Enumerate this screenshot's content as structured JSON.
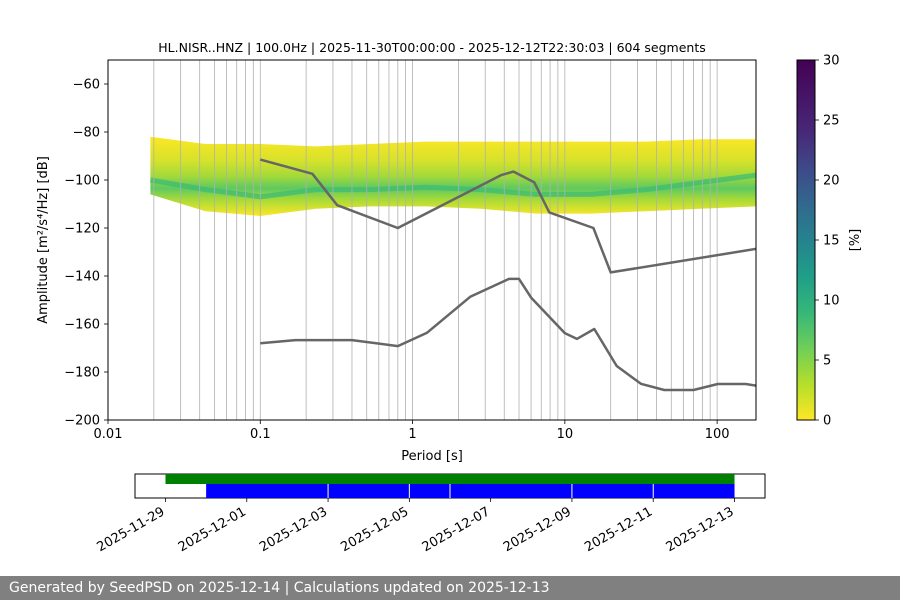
{
  "chart_data": [
    {
      "type": "heatmap",
      "title": "HL.NISR..HNZ | 100.0Hz | 2025-11-30T00:00:00 - 2025-12-12T22:30:03 | 604 segments",
      "xlabel": "Period [s]",
      "ylabel": "Amplitude [m²/s⁴/Hz] [dB]",
      "x_scale": "log",
      "xlim": [
        0.01,
        180
      ],
      "ylim": [
        -200,
        -50
      ],
      "x_ticks": [
        0.01,
        0.1,
        1,
        10,
        100
      ],
      "x_tick_labels": [
        "0.01",
        "0.1",
        "1",
        "10",
        "100"
      ],
      "y_ticks": [
        -200,
        -180,
        -160,
        -140,
        -120,
        -100,
        -80,
        -60
      ],
      "y_tick_labels": [
        "−200",
        "−180",
        "−160",
        "−140",
        "−120",
        "−100",
        "−80",
        "−60"
      ],
      "grid": "x-major-and-minor",
      "colorbar": {
        "label": "[%]",
        "range": [
          0,
          30
        ],
        "ticks": [
          0,
          5,
          10,
          15,
          20,
          25,
          30
        ],
        "colormap": "viridis-reversed"
      },
      "psd_band": {
        "period_start": 0.019,
        "period_end": 180,
        "upper_db": [
          -82,
          -85,
          -85,
          -86,
          -85,
          -84,
          -84,
          -84,
          -84,
          -84,
          -83,
          -83
        ],
        "lower_db": [
          -106,
          -113,
          -115,
          -112,
          -111,
          -111,
          -112,
          -114,
          -114,
          -113,
          -112,
          -111
        ],
        "center_db": [
          -100,
          -104,
          -107,
          -104,
          -104,
          -103,
          -104,
          -106,
          -106,
          -104,
          -101,
          -98
        ]
      },
      "series": [
        {
          "color": "#666666",
          "x": [
            0.1,
            0.22,
            0.32,
            0.8,
            3.8,
            4.6,
            6.3,
            7.9,
            15.4,
            20,
            180
          ],
          "y": [
            -91.5,
            -97.4,
            -110.5,
            -120.0,
            -98.0,
            -96.5,
            -101.0,
            -113.5,
            -120.0,
            -138.5,
            -128.7
          ]
        },
        {
          "color": "#666666",
          "x": [
            0.1,
            0.17,
            0.4,
            0.8,
            1.24,
            2.4,
            4.3,
            5.0,
            6.0,
            10,
            12,
            15.6,
            21.9,
            31.6,
            45,
            70,
            101,
            154,
            180
          ],
          "y": [
            -168,
            -166.7,
            -166.7,
            -169.2,
            -163.7,
            -148.6,
            -141.2,
            -141.2,
            -149.0,
            -163.8,
            -166.2,
            -162.1,
            -177.5,
            -184.9,
            -187.5,
            -187.5,
            -185.0,
            -185.0,
            -185.7
          ]
        }
      ]
    },
    {
      "type": "bar",
      "x_axis": "date",
      "x_ticks": [
        "2025-11-29",
        "2025-12-01",
        "2025-12-03",
        "2025-12-05",
        "2025-12-07",
        "2025-12-09",
        "2025-12-11",
        "2025-12-13"
      ],
      "xlim": [
        "2025-11-28T06:00",
        "2025-12-13T18:00"
      ],
      "series": [
        {
          "color": "#008000",
          "start": "2025-11-29T00:00",
          "end": "2025-12-13T00:00"
        },
        {
          "color": "#0000ff",
          "start": "2025-11-30T00:00",
          "end": "2025-12-13T00:00",
          "gaps": [
            "2025-12-03",
            "2025-12-05",
            "2025-12-06",
            "2025-12-09",
            "2025-12-11"
          ]
        }
      ]
    }
  ],
  "footer": {
    "text": "Generated by SeedPSD on 2025-12-14 | Calculations updated on 2025-12-13"
  }
}
